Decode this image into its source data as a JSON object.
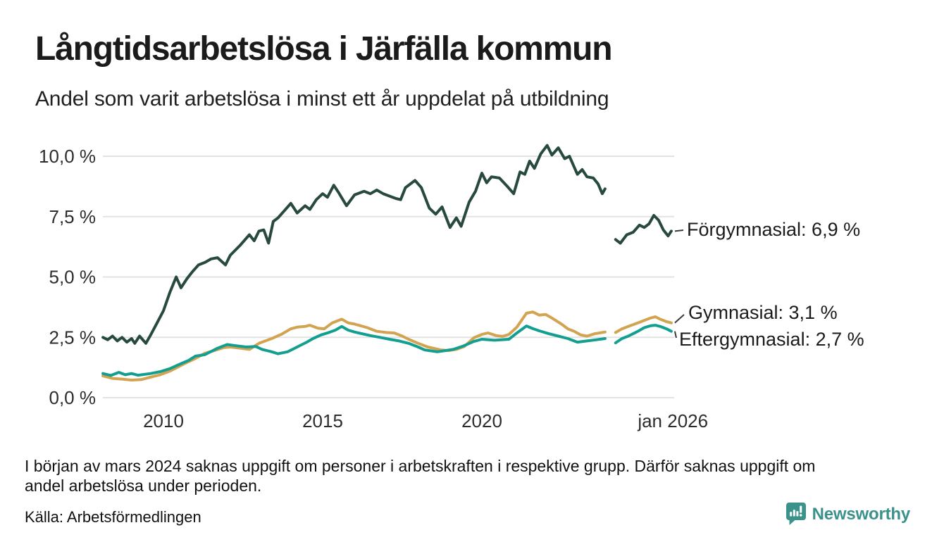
{
  "footer": {
    "note_lines": [
      "I början av mars 2024 saknas uppgift om personer i arbetskraften i respektive grupp. Därför saknas uppgift om",
      "andel arbetslösa under perioden."
    ],
    "source": "Källa: Arbetsförmedlingen",
    "brand": "Newsworthy",
    "brand_color": "#3b928b"
  },
  "chart_data": {
    "type": "line",
    "title": "Långtidsarbetslösa i Järfälla kommun",
    "subtitle": "Andel som varit arbetslösa i minst ett år uppdelat på utbildning",
    "xlabel": "",
    "ylabel": "",
    "grid": "horizontal",
    "gridline_color": "#e3e3e3",
    "x_range": [
      2008.0,
      2026.0
    ],
    "ylim": [
      0,
      10.5
    ],
    "y_ticks": [
      {
        "value": 10.0,
        "label": "10,0 %"
      },
      {
        "value": 7.5,
        "label": "7,5 %"
      },
      {
        "value": 5.0,
        "label": "5,0 %"
      },
      {
        "value": 2.5,
        "label": "2,5 %"
      },
      {
        "value": 0.0,
        "label": "0,0 %"
      }
    ],
    "x_ticks": [
      {
        "year": 2010,
        "label": "2010"
      },
      {
        "year": 2015,
        "label": "2015"
      },
      {
        "year": 2020,
        "label": "2020"
      },
      {
        "year": 2026,
        "label": "jan 2026"
      }
    ],
    "data_gap_years": [
      2023.87,
      2024.2
    ],
    "series": [
      {
        "id": "forgymnasial",
        "name": "Förgymnasial",
        "label": "Förgymnasial: 6,9 %",
        "end_value": "6,9 %",
        "color": "#284a3c",
        "segments": [
          [
            [
              2008.1,
              2.5
            ],
            [
              2008.25,
              2.4
            ],
            [
              2008.4,
              2.55
            ],
            [
              2008.55,
              2.35
            ],
            [
              2008.7,
              2.5
            ],
            [
              2008.85,
              2.3
            ],
            [
              2009.0,
              2.45
            ],
            [
              2009.1,
              2.25
            ],
            [
              2009.25,
              2.55
            ],
            [
              2009.45,
              2.25
            ],
            [
              2009.6,
              2.6
            ],
            [
              2009.8,
              3.1
            ],
            [
              2010.0,
              3.6
            ],
            [
              2010.2,
              4.35
            ],
            [
              2010.4,
              5.0
            ],
            [
              2010.55,
              4.55
            ],
            [
              2010.75,
              4.95
            ],
            [
              2010.9,
              5.2
            ],
            [
              2011.1,
              5.5
            ],
            [
              2011.3,
              5.6
            ],
            [
              2011.5,
              5.75
            ],
            [
              2011.7,
              5.8
            ],
            [
              2011.95,
              5.5
            ],
            [
              2012.1,
              5.9
            ],
            [
              2012.4,
              6.3
            ],
            [
              2012.7,
              6.75
            ],
            [
              2012.85,
              6.5
            ],
            [
              2013.0,
              6.9
            ],
            [
              2013.15,
              6.95
            ],
            [
              2013.3,
              6.4
            ],
            [
              2013.45,
              7.3
            ],
            [
              2013.6,
              7.45
            ],
            [
              2013.8,
              7.75
            ],
            [
              2014.0,
              8.05
            ],
            [
              2014.2,
              7.65
            ],
            [
              2014.45,
              7.95
            ],
            [
              2014.6,
              7.8
            ],
            [
              2014.8,
              8.2
            ],
            [
              2015.0,
              8.45
            ],
            [
              2015.15,
              8.3
            ],
            [
              2015.35,
              8.8
            ],
            [
              2015.5,
              8.5
            ],
            [
              2015.75,
              7.95
            ],
            [
              2016.0,
              8.4
            ],
            [
              2016.3,
              8.55
            ],
            [
              2016.5,
              8.45
            ],
            [
              2016.7,
              8.6
            ],
            [
              2016.9,
              8.45
            ],
            [
              2017.1,
              8.35
            ],
            [
              2017.3,
              8.25
            ],
            [
              2017.45,
              8.2
            ],
            [
              2017.6,
              8.7
            ],
            [
              2017.9,
              9.0
            ],
            [
              2018.1,
              8.7
            ],
            [
              2018.35,
              7.85
            ],
            [
              2018.55,
              7.6
            ],
            [
              2018.75,
              7.9
            ],
            [
              2019.0,
              7.05
            ],
            [
              2019.2,
              7.45
            ],
            [
              2019.35,
              7.1
            ],
            [
              2019.6,
              8.1
            ],
            [
              2019.8,
              8.55
            ],
            [
              2020.0,
              9.3
            ],
            [
              2020.15,
              8.9
            ],
            [
              2020.3,
              9.15
            ],
            [
              2020.55,
              9.1
            ],
            [
              2020.8,
              8.75
            ],
            [
              2021.0,
              8.45
            ],
            [
              2021.2,
              9.35
            ],
            [
              2021.35,
              9.25
            ],
            [
              2021.5,
              9.8
            ],
            [
              2021.65,
              9.5
            ],
            [
              2021.85,
              10.1
            ],
            [
              2022.05,
              10.45
            ],
            [
              2022.2,
              10.05
            ],
            [
              2022.4,
              10.35
            ],
            [
              2022.6,
              9.9
            ],
            [
              2022.75,
              10.0
            ],
            [
              2023.0,
              9.25
            ],
            [
              2023.15,
              9.45
            ],
            [
              2023.3,
              9.15
            ],
            [
              2023.5,
              9.1
            ],
            [
              2023.65,
              8.85
            ],
            [
              2023.78,
              8.45
            ],
            [
              2023.87,
              8.65
            ]
          ],
          [
            [
              2024.2,
              6.55
            ],
            [
              2024.35,
              6.4
            ],
            [
              2024.55,
              6.75
            ],
            [
              2024.75,
              6.85
            ],
            [
              2024.95,
              7.15
            ],
            [
              2025.1,
              7.05
            ],
            [
              2025.25,
              7.2
            ],
            [
              2025.4,
              7.55
            ],
            [
              2025.55,
              7.35
            ],
            [
              2025.7,
              6.95
            ],
            [
              2025.85,
              6.7
            ],
            [
              2025.95,
              6.9
            ]
          ]
        ]
      },
      {
        "id": "gymnasial",
        "name": "Gymnasial",
        "label": "Gymnasial: 3,1 %",
        "end_value": "3,1 %",
        "color": "#d2a351",
        "segments": [
          [
            [
              2008.1,
              0.9
            ],
            [
              2008.4,
              0.8
            ],
            [
              2008.7,
              0.77
            ],
            [
              2009.0,
              0.73
            ],
            [
              2009.3,
              0.75
            ],
            [
              2009.6,
              0.85
            ],
            [
              2009.9,
              0.95
            ],
            [
              2010.2,
              1.1
            ],
            [
              2010.5,
              1.3
            ],
            [
              2010.8,
              1.5
            ],
            [
              2011.0,
              1.62
            ],
            [
              2011.3,
              1.84
            ],
            [
              2011.6,
              1.95
            ],
            [
              2011.9,
              2.08
            ],
            [
              2012.1,
              2.1
            ],
            [
              2012.4,
              2.05
            ],
            [
              2012.7,
              2.0
            ],
            [
              2013.0,
              2.25
            ],
            [
              2013.4,
              2.45
            ],
            [
              2013.7,
              2.62
            ],
            [
              2014.0,
              2.85
            ],
            [
              2014.2,
              2.92
            ],
            [
              2014.45,
              2.95
            ],
            [
              2014.6,
              3.0
            ],
            [
              2014.85,
              2.88
            ],
            [
              2015.05,
              2.85
            ],
            [
              2015.3,
              3.1
            ],
            [
              2015.6,
              3.25
            ],
            [
              2015.8,
              3.1
            ],
            [
              2016.0,
              3.05
            ],
            [
              2016.4,
              2.9
            ],
            [
              2016.7,
              2.75
            ],
            [
              2017.0,
              2.7
            ],
            [
              2017.25,
              2.68
            ],
            [
              2017.5,
              2.55
            ],
            [
              2017.7,
              2.42
            ],
            [
              2018.0,
              2.25
            ],
            [
              2018.3,
              2.1
            ],
            [
              2018.7,
              1.98
            ],
            [
              2018.95,
              1.95
            ],
            [
              2019.2,
              2.0
            ],
            [
              2019.45,
              2.12
            ],
            [
              2019.75,
              2.48
            ],
            [
              2020.0,
              2.62
            ],
            [
              2020.2,
              2.68
            ],
            [
              2020.45,
              2.57
            ],
            [
              2020.65,
              2.54
            ],
            [
              2020.85,
              2.62
            ],
            [
              2021.1,
              2.92
            ],
            [
              2021.4,
              3.5
            ],
            [
              2021.6,
              3.55
            ],
            [
              2021.8,
              3.42
            ],
            [
              2022.0,
              3.45
            ],
            [
              2022.2,
              3.3
            ],
            [
              2022.5,
              3.05
            ],
            [
              2022.7,
              2.85
            ],
            [
              2022.9,
              2.75
            ],
            [
              2023.1,
              2.6
            ],
            [
              2023.3,
              2.55
            ],
            [
              2023.55,
              2.65
            ],
            [
              2023.87,
              2.72
            ]
          ],
          [
            [
              2024.2,
              2.7
            ],
            [
              2024.4,
              2.85
            ],
            [
              2024.6,
              2.95
            ],
            [
              2024.9,
              3.1
            ],
            [
              2025.1,
              3.2
            ],
            [
              2025.3,
              3.3
            ],
            [
              2025.45,
              3.35
            ],
            [
              2025.6,
              3.25
            ],
            [
              2025.8,
              3.15
            ],
            [
              2025.95,
              3.1
            ]
          ]
        ]
      },
      {
        "id": "eftergymnasial",
        "name": "Eftergymnasial",
        "label": "Eftergymnasial: 2,7 %",
        "end_value": "2,7 %",
        "color": "#129f90",
        "segments": [
          [
            [
              2008.1,
              1.0
            ],
            [
              2008.35,
              0.92
            ],
            [
              2008.6,
              1.05
            ],
            [
              2008.8,
              0.95
            ],
            [
              2009.0,
              1.0
            ],
            [
              2009.2,
              0.93
            ],
            [
              2009.6,
              1.0
            ],
            [
              2009.9,
              1.08
            ],
            [
              2010.2,
              1.2
            ],
            [
              2010.5,
              1.38
            ],
            [
              2010.8,
              1.55
            ],
            [
              2011.0,
              1.72
            ],
            [
              2011.3,
              1.78
            ],
            [
              2011.7,
              2.05
            ],
            [
              2012.0,
              2.2
            ],
            [
              2012.3,
              2.15
            ],
            [
              2012.6,
              2.1
            ],
            [
              2012.9,
              2.12
            ],
            [
              2013.1,
              2.0
            ],
            [
              2013.4,
              1.9
            ],
            [
              2013.6,
              1.82
            ],
            [
              2013.9,
              1.9
            ],
            [
              2014.2,
              2.1
            ],
            [
              2014.5,
              2.3
            ],
            [
              2014.7,
              2.45
            ],
            [
              2014.95,
              2.6
            ],
            [
              2015.15,
              2.68
            ],
            [
              2015.4,
              2.8
            ],
            [
              2015.6,
              2.95
            ],
            [
              2015.8,
              2.8
            ],
            [
              2016.0,
              2.72
            ],
            [
              2016.5,
              2.57
            ],
            [
              2016.8,
              2.5
            ],
            [
              2017.1,
              2.42
            ],
            [
              2017.4,
              2.35
            ],
            [
              2017.7,
              2.25
            ],
            [
              2018.0,
              2.1
            ],
            [
              2018.2,
              1.98
            ],
            [
              2018.6,
              1.9
            ],
            [
              2018.85,
              1.95
            ],
            [
              2019.1,
              2.0
            ],
            [
              2019.4,
              2.13
            ],
            [
              2019.75,
              2.33
            ],
            [
              2020.0,
              2.42
            ],
            [
              2020.4,
              2.38
            ],
            [
              2020.85,
              2.42
            ],
            [
              2021.1,
              2.68
            ],
            [
              2021.4,
              2.97
            ],
            [
              2021.6,
              2.86
            ],
            [
              2021.8,
              2.77
            ],
            [
              2022.1,
              2.65
            ],
            [
              2022.4,
              2.55
            ],
            [
              2022.7,
              2.45
            ],
            [
              2023.0,
              2.3
            ],
            [
              2023.3,
              2.35
            ],
            [
              2023.6,
              2.4
            ],
            [
              2023.87,
              2.45
            ]
          ],
          [
            [
              2024.2,
              2.27
            ],
            [
              2024.4,
              2.45
            ],
            [
              2024.6,
              2.55
            ],
            [
              2024.9,
              2.75
            ],
            [
              2025.1,
              2.9
            ],
            [
              2025.3,
              2.98
            ],
            [
              2025.45,
              3.0
            ],
            [
              2025.6,
              2.95
            ],
            [
              2025.8,
              2.85
            ],
            [
              2025.95,
              2.75
            ]
          ]
        ]
      }
    ]
  }
}
